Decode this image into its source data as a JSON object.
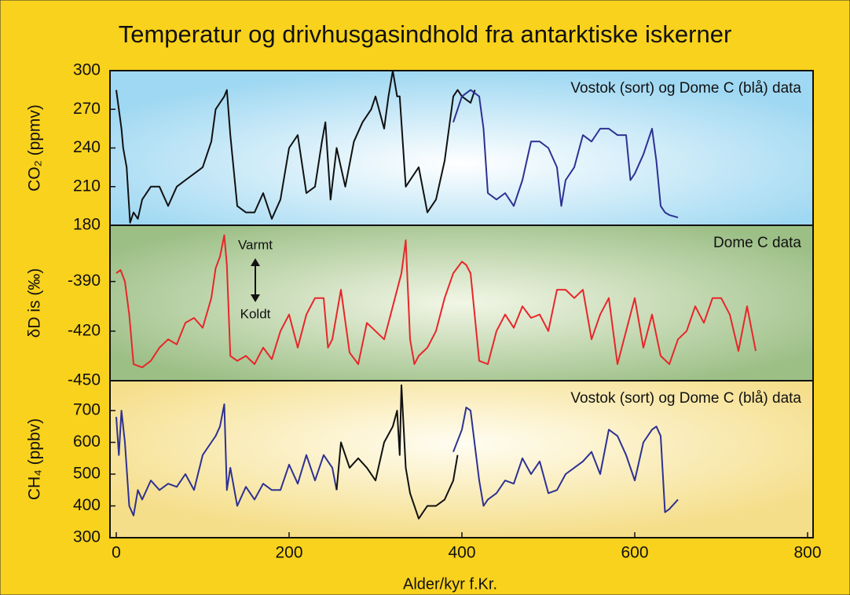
{
  "title": "Temperatur og drivhusgasindhold fra antarktiske iskerner",
  "chart_data": [
    {
      "type": "line",
      "ylabel": "CO₂ (ppmv)",
      "ylim": [
        180,
        300
      ],
      "yticks": [
        180,
        210,
        240,
        270,
        300
      ],
      "annotation": "Vostok (sort) og Dome C (blå) data",
      "series": [
        {
          "color": "#111111",
          "x": [
            0,
            3,
            6,
            8,
            12,
            16,
            20,
            25,
            30,
            40,
            50,
            60,
            70,
            80,
            90,
            100,
            105,
            110,
            115,
            120,
            125,
            128,
            132,
            140,
            150,
            160,
            170,
            180,
            190,
            200,
            210,
            220,
            230,
            238,
            242,
            248,
            255,
            265,
            275,
            285,
            295,
            300,
            310,
            315,
            320,
            325,
            328,
            332,
            335,
            340,
            350,
            360,
            370,
            380,
            390,
            395,
            400,
            410,
            415
          ],
          "values": [
            285,
            270,
            255,
            240,
            225,
            182,
            190,
            185,
            200,
            210,
            210,
            195,
            210,
            215,
            220,
            225,
            235,
            245,
            270,
            275,
            280,
            285,
            250,
            195,
            190,
            190,
            205,
            185,
            200,
            240,
            250,
            205,
            210,
            245,
            260,
            200,
            240,
            210,
            245,
            260,
            270,
            280,
            255,
            280,
            300,
            280,
            280,
            240,
            210,
            215,
            225,
            190,
            200,
            230,
            280,
            285,
            280,
            275,
            285
          ]
        },
        {
          "color": "#2e3192",
          "x": [
            390,
            400,
            410,
            420,
            425,
            430,
            440,
            450,
            460,
            470,
            480,
            490,
            500,
            510,
            515,
            520,
            530,
            540,
            550,
            560,
            570,
            580,
            590,
            595,
            600,
            610,
            620,
            625,
            630,
            635,
            640,
            650
          ],
          "values": [
            260,
            280,
            285,
            280,
            255,
            205,
            200,
            205,
            195,
            215,
            245,
            245,
            240,
            225,
            195,
            215,
            225,
            250,
            245,
            255,
            255,
            250,
            250,
            215,
            220,
            235,
            255,
            230,
            195,
            190,
            188,
            186
          ]
        }
      ]
    },
    {
      "type": "line",
      "ylabel": "δD is (‰)",
      "ylim": [
        -450,
        -356
      ],
      "yticks": [
        -450,
        -420,
        -390
      ],
      "annotation": "Dome C data",
      "warm_label": "Varmt",
      "cold_label": "Koldt",
      "series": [
        {
          "color": "#e8262a",
          "x": [
            0,
            5,
            10,
            15,
            20,
            30,
            40,
            50,
            60,
            70,
            80,
            90,
            100,
            110,
            115,
            120,
            125,
            128,
            132,
            140,
            150,
            160,
            170,
            180,
            190,
            200,
            210,
            220,
            230,
            240,
            245,
            250,
            260,
            270,
            280,
            290,
            300,
            310,
            320,
            330,
            335,
            340,
            345,
            350,
            360,
            370,
            380,
            390,
            400,
            405,
            410,
            420,
            430,
            440,
            450,
            460,
            470,
            480,
            490,
            500,
            510,
            520,
            530,
            540,
            550,
            560,
            570,
            580,
            590,
            600,
            610,
            620,
            630,
            640,
            650,
            660,
            670,
            680,
            690,
            700,
            710,
            720,
            730,
            740
          ],
          "values": [
            -385,
            -383,
            -390,
            -410,
            -440,
            -442,
            -438,
            -430,
            -425,
            -428,
            -415,
            -412,
            -418,
            -400,
            -382,
            -375,
            -362,
            -380,
            -435,
            -438,
            -435,
            -440,
            -430,
            -437,
            -420,
            -410,
            -430,
            -410,
            -400,
            -400,
            -430,
            -425,
            -395,
            -433,
            -440,
            -415,
            -420,
            -425,
            -405,
            -385,
            -365,
            -425,
            -440,
            -435,
            -430,
            -420,
            -400,
            -385,
            -378,
            -380,
            -385,
            -438,
            -440,
            -420,
            -410,
            -418,
            -405,
            -412,
            -410,
            -420,
            -395,
            -395,
            -400,
            -395,
            -425,
            -410,
            -400,
            -440,
            -420,
            -400,
            -430,
            -410,
            -435,
            -440,
            -425,
            -420,
            -405,
            -415,
            -400,
            -400,
            -410,
            -432,
            -405,
            -432
          ]
        }
      ]
    },
    {
      "type": "line",
      "ylabel": "CH₄ (ppbv)",
      "ylim": [
        300,
        794
      ],
      "yticks": [
        300,
        400,
        500,
        600,
        700
      ],
      "annotation": "Vostok (sort) og Dome C (blå) data",
      "xlim": [
        0,
        800
      ],
      "xticks": [
        0,
        200,
        400,
        600,
        800
      ],
      "xlabel": "Alder/kyr f.Kr.",
      "series": [
        {
          "color": "#2e3192",
          "x": [
            0,
            3,
            6,
            10,
            15,
            20,
            25,
            30,
            40,
            50,
            60,
            70,
            80,
            90,
            100,
            110,
            115,
            120,
            125,
            128,
            132,
            140,
            150,
            160,
            170,
            180,
            190,
            200,
            210,
            220,
            230,
            240,
            250,
            255,
            300,
            390,
            400,
            405,
            410,
            420,
            425,
            430,
            440,
            450,
            460,
            470,
            480,
            490,
            500,
            510,
            520,
            530,
            540,
            550,
            560,
            570,
            580,
            590,
            600,
            610,
            620,
            625,
            630,
            635,
            640,
            650
          ],
          "values": [
            680,
            560,
            700,
            600,
            400,
            370,
            450,
            420,
            480,
            450,
            470,
            460,
            500,
            450,
            560,
            600,
            620,
            650,
            720,
            450,
            520,
            400,
            460,
            420,
            470,
            450,
            450,
            530,
            470,
            560,
            480,
            560,
            520,
            450,
            null,
            570,
            640,
            710,
            700,
            480,
            400,
            420,
            440,
            480,
            470,
            550,
            500,
            540,
            440,
            450,
            500,
            520,
            540,
            570,
            500,
            640,
            620,
            560,
            480,
            600,
            640,
            650,
            620,
            380,
            390,
            420
          ]
        },
        {
          "color": "#111111",
          "x": [
            255,
            260,
            270,
            280,
            290,
            300,
            310,
            320,
            325,
            328,
            330,
            335,
            340,
            350,
            360,
            370,
            380,
            390,
            395
          ],
          "values": [
            450,
            600,
            520,
            550,
            520,
            480,
            600,
            650,
            700,
            560,
            780,
            520,
            440,
            360,
            400,
            400,
            420,
            480,
            560
          ]
        }
      ]
    }
  ]
}
